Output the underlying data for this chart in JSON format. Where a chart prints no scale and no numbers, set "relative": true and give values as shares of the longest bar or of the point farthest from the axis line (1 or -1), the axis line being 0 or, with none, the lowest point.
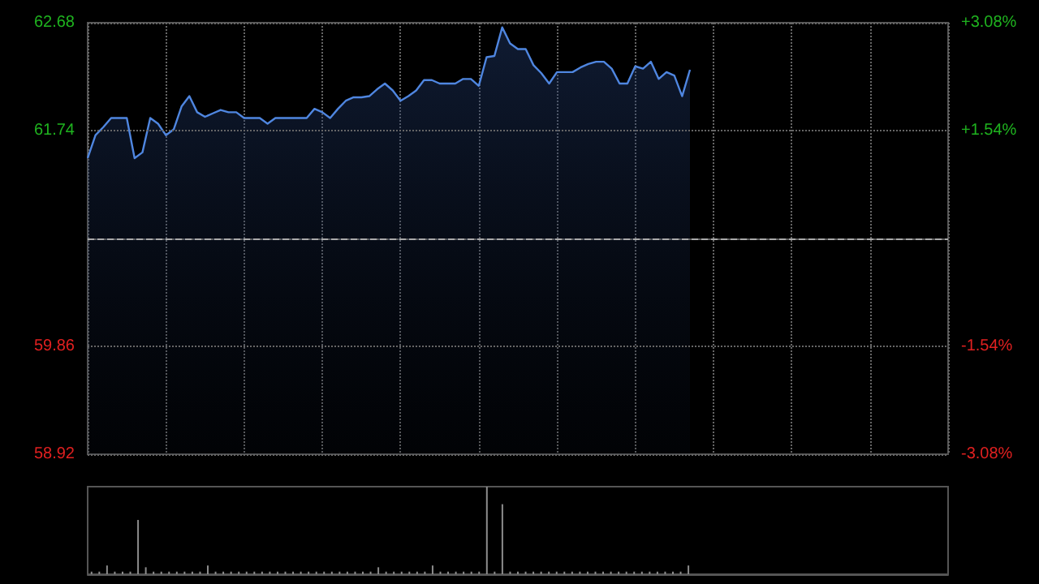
{
  "chart_data": [
    {
      "type": "area",
      "categories": [
        null,
        null,
        null,
        null,
        null,
        null,
        null,
        null,
        null,
        null,
        null,
        null,
        null,
        null,
        null,
        null,
        null,
        null,
        null,
        null,
        null,
        null,
        null,
        null,
        null,
        null,
        null,
        null,
        null,
        null,
        null,
        null,
        null,
        null,
        null,
        null,
        null,
        null,
        null,
        null,
        null,
        null,
        null,
        null,
        null,
        null,
        null,
        null,
        null,
        null,
        null,
        null,
        null,
        null,
        null,
        null,
        null,
        null,
        null,
        null,
        null,
        null,
        null,
        null,
        null,
        null,
        null,
        null,
        null,
        null,
        null,
        null,
        null,
        null,
        null,
        null,
        null,
        null,
        null,
        null,
        null,
        null,
        null,
        null,
        null,
        null,
        null,
        null,
        null,
        null,
        null,
        null,
        null,
        null,
        null,
        null,
        null,
        null,
        null,
        null,
        null,
        null,
        null,
        null,
        null,
        null,
        null,
        null,
        null,
        null,
        null
      ],
      "values": [
        61.5,
        61.7,
        61.77,
        61.85,
        61.85,
        61.85,
        61.5,
        61.55,
        61.85,
        61.8,
        61.7,
        61.75,
        61.95,
        62.04,
        61.9,
        61.86,
        61.89,
        61.92,
        61.9,
        61.9,
        61.85,
        61.85,
        61.85,
        61.8,
        61.85,
        61.85,
        61.85,
        61.85,
        61.85,
        61.93,
        61.9,
        61.85,
        61.93,
        62.0,
        62.03,
        62.03,
        62.04,
        62.1,
        62.15,
        62.09,
        62.0,
        62.04,
        62.09,
        62.18,
        62.18,
        62.15,
        62.15,
        62.15,
        62.19,
        62.19,
        62.13,
        62.38,
        62.39,
        62.64,
        62.5,
        62.45,
        62.45,
        62.31,
        62.24,
        62.15,
        62.25,
        62.25,
        62.25,
        62.29,
        62.32,
        62.34,
        62.34,
        62.28,
        62.15,
        62.15,
        62.3,
        62.28,
        62.34,
        62.19,
        62.25,
        62.22,
        62.04,
        62.27,
        null,
        null,
        null,
        null,
        null,
        null,
        null,
        null,
        null,
        null,
        null,
        null,
        null,
        null,
        null,
        null,
        null,
        null,
        null,
        null,
        null,
        null,
        null,
        null,
        null,
        null,
        null,
        null,
        null,
        null,
        null,
        null,
        null
      ],
      "color": "#4f86e0",
      "ylim": [
        58.92,
        62.68
      ],
      "yticks": [
        58.92,
        59.86,
        {
          "value": 60.8,
          "label": null
        },
        61.74,
        62.68
      ],
      "y2lim": [
        -3.08,
        3.08
      ],
      "y2ticks": [
        {
          "value": -3.08,
          "label": "-3.08%"
        },
        {
          "value": -1.54,
          "label": "-1.54%"
        },
        {
          "value": 1.54,
          "label": "+1.54%"
        },
        {
          "value": 3.08,
          "label": "+3.08%"
        }
      ],
      "ref_lines": [
        {
          "axis": "y",
          "value": 60.8,
          "line_style": "dashed",
          "color": "#aaaaaa"
        }
      ],
      "grid": true
    },
    {
      "type": "bar",
      "relative": true,
      "color": "#8c8c8c",
      "categories": [
        null,
        null,
        null,
        null,
        null,
        null,
        null,
        null,
        null,
        null,
        null,
        null,
        null,
        null,
        null,
        null,
        null,
        null,
        null,
        null,
        null,
        null,
        null,
        null,
        null,
        null,
        null,
        null,
        null,
        null,
        null,
        null,
        null,
        null,
        null,
        null,
        null,
        null,
        null,
        null,
        null,
        null,
        null,
        null,
        null,
        null,
        null,
        null,
        null,
        null,
        null,
        null,
        null,
        null,
        null,
        null,
        null,
        null,
        null,
        null,
        null,
        null,
        null,
        null,
        null,
        null,
        null,
        null,
        null,
        null,
        null,
        null,
        null,
        null,
        null,
        null,
        null,
        null,
        null,
        null,
        null,
        null,
        null,
        null,
        null,
        null,
        null,
        null,
        null,
        null,
        null,
        null,
        null,
        null,
        null,
        null,
        null,
        null,
        null,
        null,
        null,
        null,
        null,
        null,
        null,
        null,
        null,
        null,
        null,
        null,
        null
      ],
      "values": [
        0.03,
        0.03,
        0.1,
        0.03,
        0.03,
        0.03,
        0.62,
        0.08,
        0.03,
        0.03,
        0.03,
        0.03,
        0.03,
        0.03,
        0.03,
        0.1,
        0.03,
        0.03,
        0.03,
        0.03,
        0.03,
        0.03,
        0.03,
        0.03,
        0.03,
        0.03,
        0.03,
        0.03,
        0.03,
        0.03,
        0.03,
        0.03,
        0.03,
        0.03,
        0.03,
        0.03,
        0.03,
        0.08,
        0.03,
        0.03,
        0.03,
        0.03,
        0.03,
        0.03,
        0.1,
        0.03,
        0.03,
        0.03,
        0.03,
        0.03,
        0.03,
        1,
        0.03,
        0.8,
        0.03,
        0.03,
        0.03,
        0.03,
        0.03,
        0.03,
        0.03,
        0.03,
        0.03,
        0.03,
        0.03,
        0.03,
        0.03,
        0.03,
        0.03,
        0.03,
        0.03,
        0.03,
        0.03,
        0.03,
        0.03,
        0.03,
        0.03,
        0.1,
        null,
        null,
        null,
        null,
        null,
        null,
        null,
        null,
        null,
        null,
        null,
        null,
        null,
        null,
        null,
        null,
        null,
        null,
        null,
        null,
        null,
        null,
        null,
        null,
        null,
        null,
        null,
        null,
        null,
        null,
        null,
        null,
        null
      ]
    }
  ]
}
